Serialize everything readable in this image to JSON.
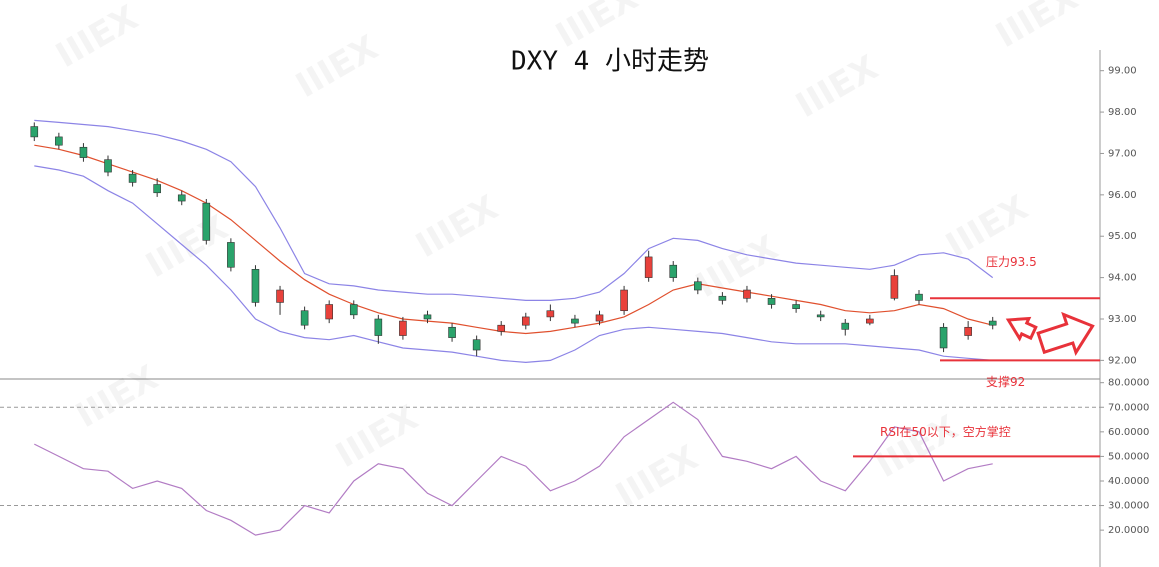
{
  "watermark": "IIIEX",
  "chart_data": [
    {
      "type": "candlestick",
      "title": "DXY 4 小时走势",
      "open": [
        97.65,
        97.4,
        97.15,
        96.85,
        96.5,
        96.25,
        96.0,
        95.8,
        94.85,
        94.2,
        93.4,
        93.2,
        93.0,
        93.35,
        93.0,
        92.6,
        93.1,
        92.8,
        92.5,
        92.7,
        92.85,
        93.05,
        93.0,
        92.95,
        93.2,
        94.0,
        94.3,
        93.9,
        93.55,
        93.5,
        93.5,
        93.35,
        93.1,
        92.9,
        92.9,
        93.5,
        93.6,
        92.8,
        92.6,
        92.95
      ],
      "high": [
        97.75,
        97.5,
        97.25,
        96.95,
        96.6,
        96.4,
        96.1,
        95.9,
        94.95,
        94.3,
        93.8,
        93.3,
        93.45,
        93.45,
        93.1,
        93.05,
        93.2,
        92.9,
        92.6,
        92.95,
        93.15,
        93.35,
        93.1,
        93.2,
        93.8,
        94.65,
        94.4,
        94.0,
        93.65,
        93.8,
        93.6,
        93.45,
        93.2,
        93.0,
        93.1,
        94.2,
        93.7,
        92.9,
        92.95,
        93.05
      ],
      "low": [
        97.3,
        97.1,
        96.8,
        96.45,
        96.2,
        95.95,
        95.75,
        94.8,
        94.15,
        93.3,
        93.1,
        92.75,
        92.9,
        93.0,
        92.4,
        92.5,
        92.9,
        92.45,
        92.1,
        92.6,
        92.75,
        92.95,
        92.8,
        92.85,
        93.1,
        93.9,
        93.9,
        93.6,
        93.35,
        93.4,
        93.25,
        93.15,
        92.95,
        92.6,
        92.85,
        93.45,
        93.35,
        92.2,
        92.5,
        92.75
      ],
      "close": [
        97.4,
        97.2,
        96.9,
        96.55,
        96.3,
        96.05,
        95.85,
        94.9,
        94.25,
        93.4,
        93.7,
        92.85,
        93.35,
        93.1,
        92.6,
        92.95,
        93.0,
        92.55,
        92.25,
        92.85,
        93.05,
        93.2,
        92.9,
        93.1,
        93.7,
        94.5,
        94.0,
        93.7,
        93.45,
        93.7,
        93.35,
        93.25,
        93.05,
        92.75,
        93.0,
        94.05,
        93.45,
        92.3,
        92.8,
        92.85
      ],
      "up_color": "#e8413b",
      "down_color": "#2aa36b",
      "bands": {
        "upper": [
          97.8,
          97.75,
          97.7,
          97.65,
          97.55,
          97.45,
          97.3,
          97.1,
          96.8,
          96.2,
          95.2,
          94.1,
          93.85,
          93.8,
          93.7,
          93.65,
          93.6,
          93.6,
          93.55,
          93.5,
          93.45,
          93.45,
          93.5,
          93.65,
          94.1,
          94.7,
          94.95,
          94.9,
          94.7,
          94.55,
          94.45,
          94.35,
          94.3,
          94.25,
          94.2,
          94.3,
          94.55,
          94.6,
          94.45,
          94.0
        ],
        "middle": [
          97.2,
          97.1,
          96.95,
          96.75,
          96.55,
          96.35,
          96.1,
          95.8,
          95.4,
          94.9,
          94.4,
          93.95,
          93.6,
          93.35,
          93.15,
          93.0,
          92.95,
          92.9,
          92.8,
          92.7,
          92.65,
          92.7,
          92.8,
          92.9,
          93.05,
          93.35,
          93.7,
          93.85,
          93.75,
          93.65,
          93.55,
          93.45,
          93.35,
          93.2,
          93.15,
          93.2,
          93.35,
          93.25,
          93.0,
          92.85
        ],
        "lower": [
          96.7,
          96.6,
          96.45,
          96.1,
          95.8,
          95.3,
          94.8,
          94.3,
          93.7,
          93.0,
          92.7,
          92.55,
          92.5,
          92.6,
          92.45,
          92.3,
          92.25,
          92.2,
          92.1,
          92.0,
          91.95,
          92.0,
          92.25,
          92.6,
          92.75,
          92.8,
          92.75,
          92.7,
          92.65,
          92.55,
          92.45,
          92.4,
          92.4,
          92.4,
          92.35,
          92.3,
          92.25,
          92.1,
          92.05,
          92.0
        ]
      },
      "band_color": "#8c84e6",
      "middle_color": "#e0502e",
      "ylim": [
        91.55,
        99.5
      ],
      "yticks": [
        {
          "value": 92,
          "label": "92.00"
        },
        {
          "value": 93,
          "label": "93.00"
        },
        {
          "value": 94,
          "label": "94.00"
        },
        {
          "value": 95,
          "label": "95.00"
        },
        {
          "value": 96,
          "label": "96.00"
        },
        {
          "value": 97,
          "label": "97.00"
        },
        {
          "value": 98,
          "label": "98.00"
        },
        {
          "value": 99,
          "label": "99.00"
        }
      ],
      "annotations": [
        {
          "text": "压力93.5",
          "value": 93.5
        },
        {
          "text": "支撑92",
          "value": 92
        }
      ],
      "annotation_color": "#e8323a"
    },
    {
      "type": "line",
      "values": [
        55,
        50,
        45,
        44,
        37,
        40,
        37,
        28,
        24,
        18,
        20,
        30,
        27,
        40,
        47,
        45,
        35,
        30,
        40,
        50,
        46,
        36,
        40,
        46,
        58,
        65,
        72,
        65,
        50,
        48,
        45,
        50,
        40,
        36,
        48,
        62,
        60,
        40,
        45,
        47
      ],
      "color": "#b27cc4",
      "ylim": [
        5,
        81.5
      ],
      "yticks": [
        {
          "value": 20,
          "label": "20.0000"
        },
        {
          "value": 30,
          "label": "30.0000"
        },
        {
          "value": 40,
          "label": "40.0000"
        },
        {
          "value": 50,
          "label": "50.0000"
        },
        {
          "value": 60,
          "label": "60.0000"
        },
        {
          "value": 70,
          "label": "70.0000"
        },
        {
          "value": 80,
          "label": "80.0000"
        }
      ],
      "reference_lines": [
        70,
        30
      ],
      "annotations": [
        {
          "text": "RSI在50以下，空方掌控",
          "value": 50
        }
      ],
      "annotation_color": "#e8323a"
    }
  ]
}
